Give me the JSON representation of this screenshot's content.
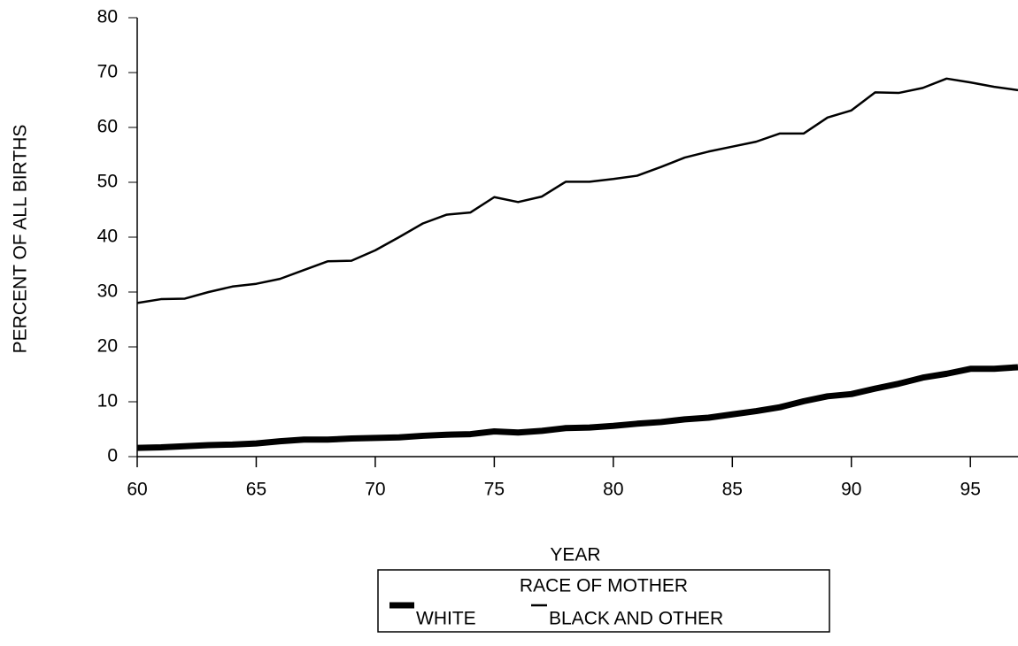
{
  "chart_data": {
    "type": "line",
    "x_label": "YEAR",
    "y_label": "PERCENT OF ALL BIRTHS",
    "legend_title": "RACE OF MOTHER",
    "x": [
      60,
      61,
      62,
      63,
      64,
      65,
      66,
      67,
      68,
      69,
      70,
      71,
      72,
      73,
      74,
      75,
      76,
      77,
      78,
      79,
      80,
      81,
      82,
      83,
      84,
      85,
      86,
      87,
      88,
      89,
      90,
      91,
      92,
      93,
      94,
      95,
      96,
      97
    ],
    "series": [
      {
        "name": "WHITE",
        "color": "#000000",
        "values": [
          1.6,
          1.7,
          1.9,
          2.1,
          2.2,
          2.4,
          2.8,
          3.1,
          3.1,
          3.3,
          3.4,
          3.5,
          3.8,
          4.0,
          4.1,
          4.6,
          4.4,
          4.7,
          5.2,
          5.3,
          5.6,
          6.0,
          6.3,
          6.8,
          7.1,
          7.7,
          8.3,
          9.0,
          10.1,
          11.0,
          11.4,
          12.4,
          13.3,
          14.4,
          15.1,
          16.0,
          16.0,
          16.3
        ]
      },
      {
        "name": "BLACK AND OTHER",
        "color": "#000000",
        "values": [
          28.0,
          28.7,
          28.8,
          30.0,
          31.0,
          31.5,
          32.4,
          34.0,
          35.6,
          35.7,
          37.6,
          40.0,
          42.5,
          44.1,
          44.5,
          47.3,
          46.4,
          47.4,
          50.1,
          50.1,
          50.6,
          51.2,
          52.8,
          54.5,
          55.6,
          56.5,
          57.4,
          58.9,
          58.9,
          61.8,
          63.1,
          66.4,
          66.3,
          67.2,
          68.9,
          68.2,
          67.4,
          66.8
        ]
      }
    ],
    "xlim": [
      60,
      97
    ],
    "xticks": [
      60,
      65,
      70,
      75,
      80,
      85,
      90,
      95
    ],
    "ylim": [
      0,
      80
    ],
    "yticks": [
      0,
      10,
      20,
      30,
      40,
      50,
      60,
      70,
      80
    ]
  }
}
